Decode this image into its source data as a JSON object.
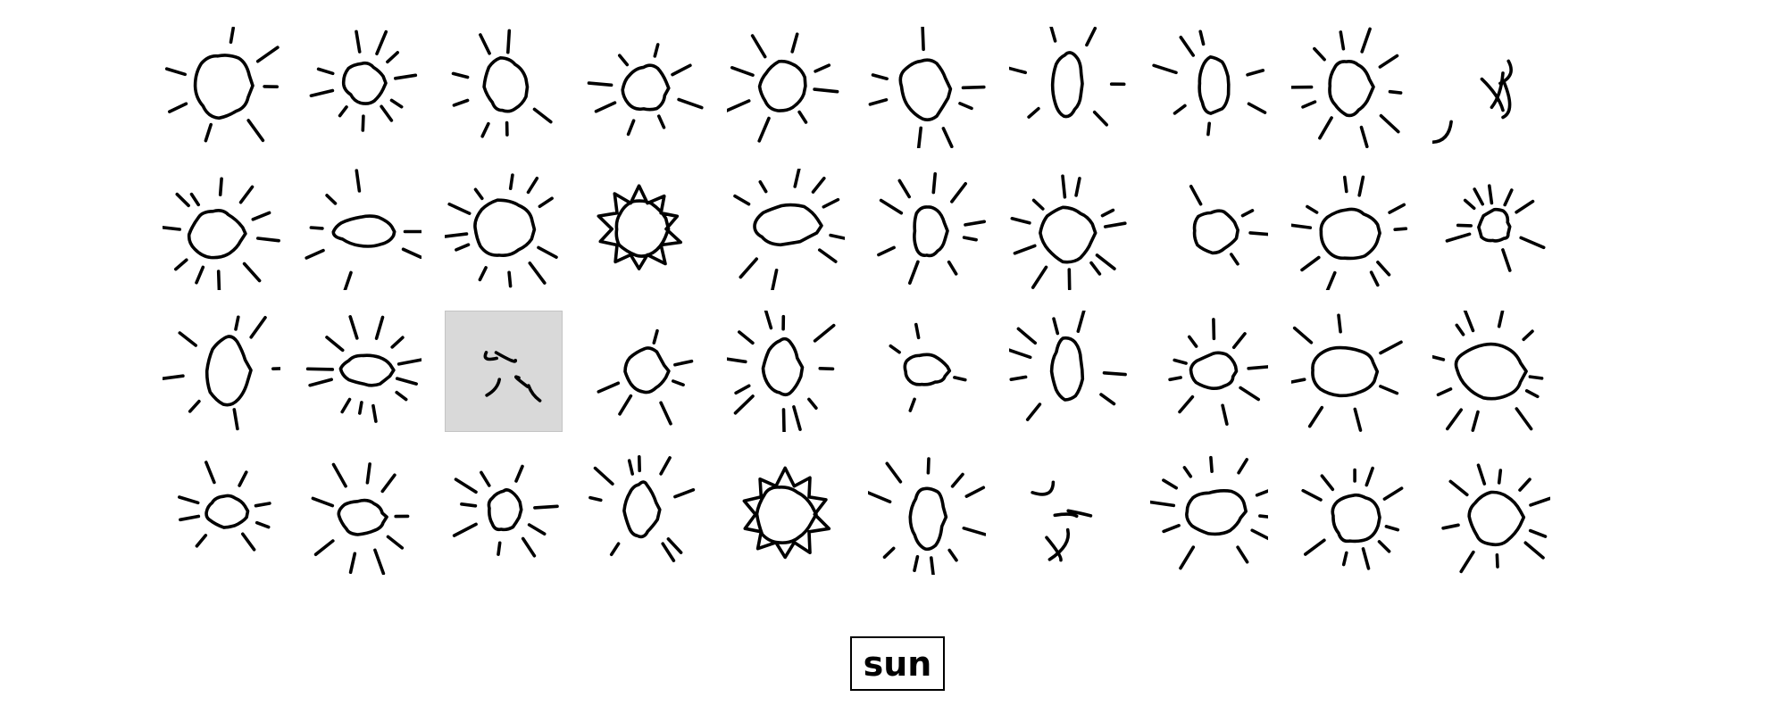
{
  "grid": {
    "rows": 4,
    "cols": 10,
    "selected_index": 22,
    "sketch_subject": "sun",
    "selected_color": "#d9d9d9",
    "stroke_color": "#000000"
  },
  "label": {
    "text": "sun"
  }
}
